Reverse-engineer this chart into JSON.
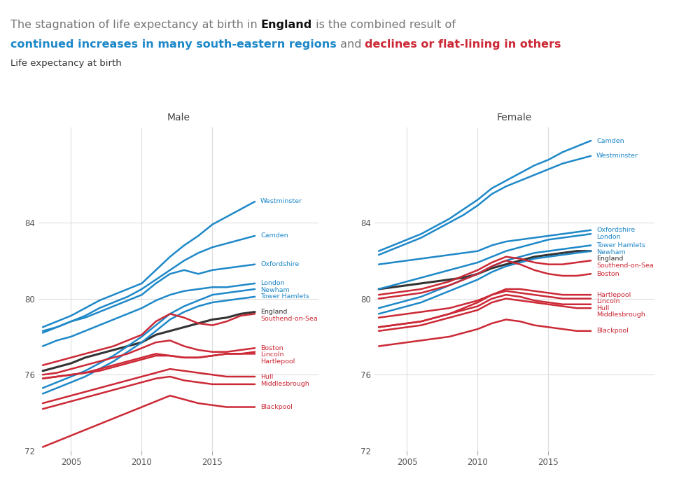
{
  "years": [
    2003,
    2004,
    2005,
    2006,
    2007,
    2008,
    2009,
    2010,
    2011,
    2012,
    2013,
    2014,
    2015,
    2016,
    2017,
    2018
  ],
  "male": {
    "Westminster": [
      78.5,
      78.8,
      79.1,
      79.5,
      79.9,
      80.2,
      80.5,
      80.8,
      81.5,
      82.2,
      82.8,
      83.3,
      83.9,
      84.3,
      84.7,
      85.1
    ],
    "Camden": [
      78.2,
      78.5,
      78.8,
      79.1,
      79.5,
      79.8,
      80.1,
      80.5,
      81.0,
      81.5,
      82.0,
      82.4,
      82.7,
      82.9,
      83.1,
      83.3
    ],
    "Oxfordshire": [
      78.3,
      78.5,
      78.8,
      79.0,
      79.3,
      79.6,
      79.9,
      80.2,
      80.8,
      81.3,
      81.5,
      81.3,
      81.5,
      81.6,
      81.7,
      81.8
    ],
    "London": [
      77.5,
      77.8,
      78.0,
      78.3,
      78.6,
      78.9,
      79.2,
      79.5,
      79.9,
      80.2,
      80.4,
      80.5,
      80.6,
      80.6,
      80.7,
      80.8
    ],
    "Newham": [
      75.3,
      75.6,
      75.9,
      76.2,
      76.6,
      77.0,
      77.5,
      78.0,
      78.6,
      79.2,
      79.6,
      79.9,
      80.2,
      80.3,
      80.4,
      80.5
    ],
    "Tower Hamlets": [
      75.0,
      75.3,
      75.6,
      75.9,
      76.3,
      76.7,
      77.2,
      77.7,
      78.3,
      78.9,
      79.3,
      79.6,
      79.8,
      79.9,
      80.0,
      80.1
    ],
    "England": [
      76.2,
      76.4,
      76.6,
      76.9,
      77.1,
      77.3,
      77.5,
      77.7,
      78.1,
      78.3,
      78.5,
      78.7,
      78.9,
      79.0,
      79.2,
      79.3
    ],
    "Southend-on-Sea": [
      76.5,
      76.7,
      76.9,
      77.1,
      77.3,
      77.5,
      77.8,
      78.1,
      78.8,
      79.2,
      79.0,
      78.7,
      78.6,
      78.8,
      79.1,
      79.2
    ],
    "Boston": [
      76.0,
      76.1,
      76.3,
      76.5,
      76.7,
      76.9,
      77.1,
      77.4,
      77.7,
      77.8,
      77.5,
      77.3,
      77.2,
      77.2,
      77.3,
      77.4
    ],
    "Lincoln": [
      75.8,
      75.9,
      76.0,
      76.1,
      76.3,
      76.5,
      76.7,
      76.9,
      77.1,
      77.0,
      76.9,
      76.9,
      77.0,
      77.1,
      77.1,
      77.2
    ],
    "Hartlepool": [
      75.8,
      75.9,
      76.0,
      76.1,
      76.2,
      76.4,
      76.6,
      76.8,
      77.0,
      77.0,
      76.9,
      76.9,
      77.0,
      77.1,
      77.1,
      77.1
    ],
    "Hull": [
      74.5,
      74.7,
      74.9,
      75.1,
      75.3,
      75.5,
      75.7,
      75.9,
      76.1,
      76.3,
      76.2,
      76.1,
      76.0,
      75.9,
      75.9,
      75.9
    ],
    "Middlesbrough": [
      74.2,
      74.4,
      74.6,
      74.8,
      75.0,
      75.2,
      75.4,
      75.6,
      75.8,
      75.9,
      75.7,
      75.6,
      75.5,
      75.5,
      75.5,
      75.5
    ],
    "Blackpool": [
      72.2,
      72.5,
      72.8,
      73.1,
      73.4,
      73.7,
      74.0,
      74.3,
      74.6,
      74.9,
      74.7,
      74.5,
      74.4,
      74.3,
      74.3,
      74.3
    ]
  },
  "female": {
    "Camden": [
      82.5,
      82.8,
      83.1,
      83.4,
      83.8,
      84.2,
      84.7,
      85.2,
      85.8,
      86.2,
      86.6,
      87.0,
      87.3,
      87.7,
      88.0,
      88.3
    ],
    "Westminster": [
      82.3,
      82.6,
      82.9,
      83.2,
      83.6,
      84.0,
      84.4,
      84.9,
      85.5,
      85.9,
      86.2,
      86.5,
      86.8,
      87.1,
      87.3,
      87.5
    ],
    "Oxfordshire": [
      81.8,
      81.9,
      82.0,
      82.1,
      82.2,
      82.3,
      82.4,
      82.5,
      82.8,
      83.0,
      83.1,
      83.2,
      83.3,
      83.4,
      83.5,
      83.6
    ],
    "London": [
      80.5,
      80.7,
      80.9,
      81.1,
      81.3,
      81.5,
      81.7,
      81.9,
      82.2,
      82.5,
      82.7,
      82.9,
      83.1,
      83.2,
      83.3,
      83.4
    ],
    "Tower Hamlets": [
      79.5,
      79.7,
      79.9,
      80.1,
      80.4,
      80.7,
      81.0,
      81.3,
      81.7,
      82.0,
      82.2,
      82.4,
      82.5,
      82.6,
      82.7,
      82.8
    ],
    "Newham": [
      79.2,
      79.4,
      79.6,
      79.8,
      80.1,
      80.4,
      80.7,
      81.0,
      81.4,
      81.7,
      81.9,
      82.1,
      82.2,
      82.3,
      82.4,
      82.5
    ],
    "England": [
      80.5,
      80.6,
      80.7,
      80.8,
      80.9,
      81.0,
      81.1,
      81.3,
      81.6,
      81.8,
      82.0,
      82.2,
      82.3,
      82.4,
      82.5,
      82.5
    ],
    "Southend-on-Sea": [
      80.2,
      80.3,
      80.4,
      80.5,
      80.7,
      80.9,
      81.2,
      81.5,
      81.9,
      82.2,
      82.1,
      81.9,
      81.8,
      81.8,
      81.9,
      82.0
    ],
    "Boston": [
      80.0,
      80.1,
      80.2,
      80.3,
      80.5,
      80.7,
      81.0,
      81.3,
      81.7,
      82.0,
      81.8,
      81.5,
      81.3,
      81.2,
      81.2,
      81.3
    ],
    "Hartlepool": [
      78.5,
      78.6,
      78.7,
      78.8,
      79.0,
      79.2,
      79.5,
      79.8,
      80.2,
      80.5,
      80.5,
      80.4,
      80.3,
      80.2,
      80.2,
      80.2
    ],
    "Lincoln": [
      79.0,
      79.1,
      79.2,
      79.3,
      79.4,
      79.5,
      79.7,
      79.9,
      80.2,
      80.4,
      80.3,
      80.2,
      80.1,
      80.0,
      80.0,
      80.0
    ],
    "Hull": [
      78.5,
      78.6,
      78.7,
      78.8,
      79.0,
      79.2,
      79.4,
      79.6,
      80.0,
      80.2,
      80.1,
      79.9,
      79.8,
      79.7,
      79.7,
      79.7
    ],
    "Middlesbrough": [
      78.3,
      78.4,
      78.5,
      78.6,
      78.8,
      79.0,
      79.2,
      79.4,
      79.8,
      80.0,
      79.9,
      79.8,
      79.7,
      79.6,
      79.5,
      79.5
    ],
    "Blackpool": [
      77.5,
      77.6,
      77.7,
      77.8,
      77.9,
      78.0,
      78.2,
      78.4,
      78.7,
      78.9,
      78.8,
      78.6,
      78.5,
      78.4,
      78.3,
      78.3
    ]
  },
  "blue_color": "#1E88C8",
  "red_color": "#CC2936",
  "england_color": "#333333",
  "blue_regions": [
    "Westminster",
    "Camden",
    "Oxfordshire",
    "London",
    "Newham",
    "Tower Hamlets"
  ],
  "red_regions": [
    "Southend-on-Sea",
    "Boston",
    "Lincoln",
    "Hartlepool",
    "Hull",
    "Middlesbrough",
    "Blackpool"
  ],
  "male_ylim": [
    72,
    87
  ],
  "female_ylim": [
    77,
    90
  ],
  "male_yticks": [
    72,
    76,
    80,
    84
  ],
  "female_yticks": [
    78,
    80,
    82,
    84,
    86,
    88
  ],
  "bg_color": "#ffffff",
  "grid_color": "#dddddd",
  "subtitle": "Life expectancy at birth",
  "title_gray1": "The stagnation of life expectancy at birth in ",
  "title_bold": "England",
  "title_gray2": " is the combined result of",
  "title_blue": "continued increases in many south-eastern regions",
  "title_mid": " and ",
  "title_red": "declines or flat-lining in others"
}
